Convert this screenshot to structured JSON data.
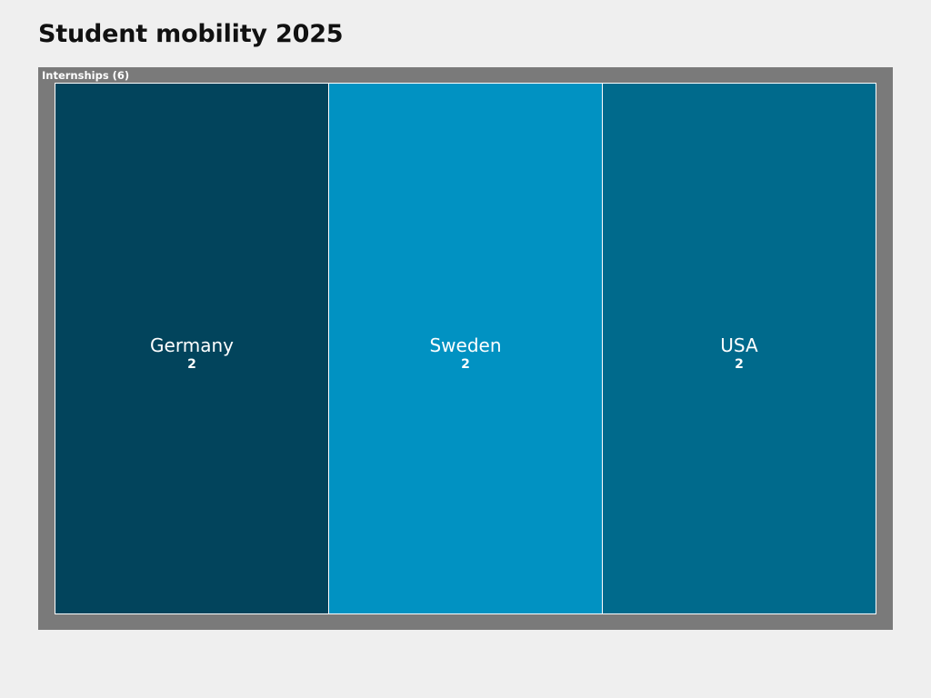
{
  "page": {
    "title": "Student mobility 2025"
  },
  "chart_data": {
    "type": "treemap",
    "title": "Student mobility 2025",
    "groups": [
      {
        "name": "Internships",
        "label": "Internships (6)",
        "total": 6,
        "items": [
          {
            "name": "Germany",
            "value": 2,
            "value_label": "2",
            "color": "#02445c"
          },
          {
            "name": "Sweden",
            "value": 2,
            "value_label": "2",
            "color": "#0192c2"
          },
          {
            "name": "USA",
            "value": 2,
            "value_label": "2",
            "color": "#006a8c"
          }
        ]
      }
    ],
    "colors": {
      "group_background": "#7a7a7a",
      "tile_border": "#ffffff",
      "page_background": "#efefef"
    }
  }
}
